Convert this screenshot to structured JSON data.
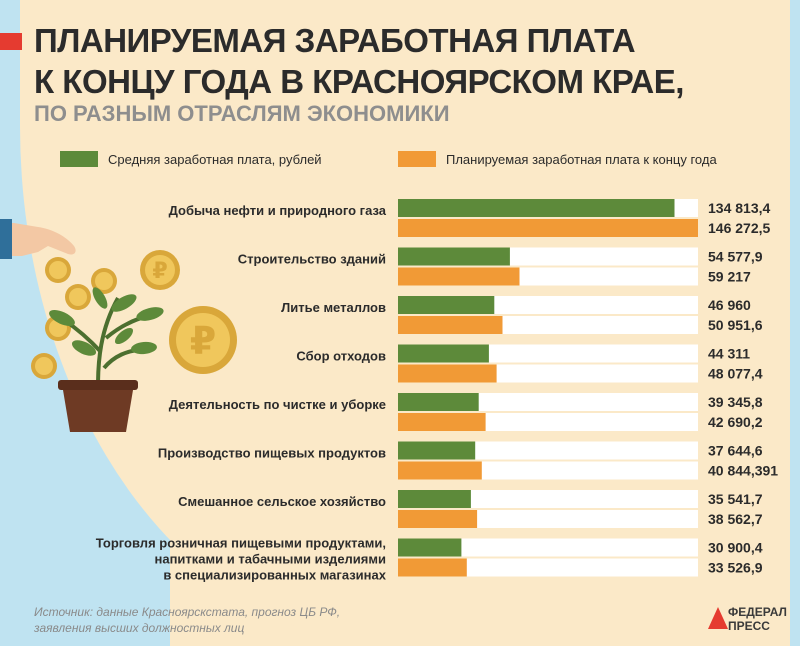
{
  "header": {
    "title_line1": "ПЛАНИРУЕМАЯ ЗАРАБОТНАЯ ПЛАТА",
    "title_line2": "К КОНЦУ ГОДА В КРАСНОЯРСКОМ КРАЕ,",
    "subtitle": "ПО РАЗНЫМ ОТРАСЛЯМ ЭКОНОМИКИ"
  },
  "colors": {
    "average": "#5d8a3a",
    "planned": "#f19a36",
    "accent": "#e53b30",
    "track": "#ffffff"
  },
  "chart_data": {
    "type": "bar",
    "orientation": "horizontal",
    "title": "ПЛАНИРУЕМАЯ ЗАРАБОТНАЯ ПЛАТА К КОНЦУ ГОДА В КРАСНОЯРСКОМ КРАЕ, ПО РАЗНЫМ ОТРАСЛЯМ ЭКОНОМИКИ",
    "legend_position": "top",
    "grid": false,
    "xlim": [
      0,
      146272.5
    ],
    "categories": [
      "Добыча нефти и природного газа",
      "Строительство зданий",
      "Литье металлов",
      "Сбор отходов",
      "Деятельность по чистке и уборке",
      "Производство пищевых продуктов",
      "Смешанное сельское хозяйство",
      "Торговля розничная пищевыми продуктами, напитками и табачными изделиями в специализированных магазинах"
    ],
    "series": [
      {
        "name": "Средняя заработная плата, рублей",
        "values": [
          134813.4,
          54577.9,
          46960,
          44311,
          39345.8,
          37644.6,
          35541.7,
          30900.4
        ],
        "labels": [
          "134 813,4",
          "54 577,9",
          "46 960",
          "44 311",
          "39 345,8",
          "37 644,6",
          "35 541,7",
          "30 900,4"
        ]
      },
      {
        "name": "Планируемая заработная плата к концу года",
        "values": [
          146272.5,
          59217,
          50951.6,
          48077.4,
          42690.2,
          40844.391,
          38562.7,
          33526.9
        ],
        "labels": [
          "146 272,5",
          "59 217",
          "50 951,6",
          "48 077,4",
          "42 690,2",
          "40 844,391",
          "38 562,7",
          "33 526,9"
        ]
      }
    ]
  },
  "footer": {
    "source_line1": "Источник: данные Красноярскстата, прогноз ЦБ РФ,",
    "source_line2": "заявления высших должностных лиц",
    "logo_line1": "ФЕДЕРАЛ",
    "logo_line2": "ПРЕСС"
  }
}
